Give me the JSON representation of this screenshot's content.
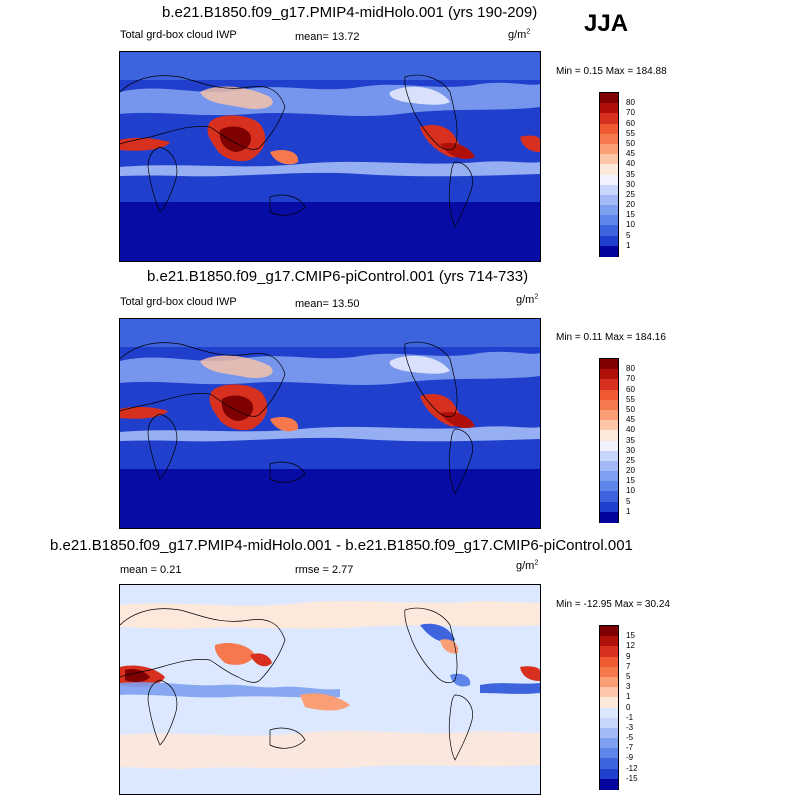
{
  "season": "JJA",
  "panels": [
    {
      "title": "b.e21.B1850.f09_g17.PMIP4-midHolo.001 (yrs 190-209)",
      "variable": "Total grd-box cloud IWP",
      "mean": "mean=  13.72",
      "unit": "g/m",
      "unit_exp": "2",
      "minmax": "Min =  0.15 Max = 184.88"
    },
    {
      "title": "b.e21.B1850.f09_g17.CMIP6-piControl.001 (yrs 714-733)",
      "variable": "Total grd-box cloud IWP",
      "mean": "mean=  13.50",
      "unit": "g/m",
      "unit_exp": "2",
      "minmax": "Min =  0.11 Max = 184.16"
    },
    {
      "title": "b.e21.B1850.f09_g17.PMIP4-midHolo.001 - b.e21.B1850.f09_g17.CMIP6-piControl.001",
      "mean": "mean =   0.21",
      "rmse": "rmse =   2.77",
      "unit": "g/m",
      "unit_exp": "2",
      "minmax": "Min = -12.95 Max =  30.24"
    }
  ],
  "chart_data": [
    {
      "type": "heatmap",
      "title": "b.e21.B1850.f09_g17.PMIP4-midHolo.001 (yrs 190-209)",
      "colorbar": {
        "labels": [
          "80",
          "70",
          "60",
          "55",
          "50",
          "45",
          "40",
          "35",
          "30",
          "25",
          "20",
          "15",
          "10",
          "5",
          "1"
        ],
        "colors": [
          "#7f0000",
          "#b0100a",
          "#d7301f",
          "#ef5a32",
          "#f5794d",
          "#fa9e76",
          "#fdc6a8",
          "#fde8dc",
          "#f2f2ff",
          "#c8d6fc",
          "#a3baf6",
          "#7ea0f0",
          "#5e86ea",
          "#3d64dc",
          "#1f3fcc",
          "#04049c"
        ]
      },
      "stats": {
        "mean": 13.72,
        "min": 0.15,
        "max": 184.88
      }
    },
    {
      "type": "heatmap",
      "title": "b.e21.B1850.f09_g17.CMIP6-piControl.001 (yrs 714-733)",
      "colorbar": {
        "labels": [
          "80",
          "70",
          "60",
          "55",
          "50",
          "45",
          "40",
          "35",
          "30",
          "25",
          "20",
          "15",
          "10",
          "5",
          "1"
        ],
        "colors": [
          "#7f0000",
          "#b0100a",
          "#d7301f",
          "#ef5a32",
          "#f5794d",
          "#fa9e76",
          "#fdc6a8",
          "#fde8dc",
          "#f2f2ff",
          "#c8d6fc",
          "#a3baf6",
          "#7ea0f0",
          "#5e86ea",
          "#3d64dc",
          "#1f3fcc",
          "#04049c"
        ]
      },
      "stats": {
        "mean": 13.5,
        "min": 0.11,
        "max": 184.16
      }
    },
    {
      "type": "heatmap",
      "title": "b.e21.B1850.f09_g17.PMIP4-midHolo.001 - b.e21.B1850.f09_g17.CMIP6-piControl.001",
      "colorbar": {
        "labels": [
          "15",
          "12",
          "9",
          "7",
          "5",
          "3",
          "1",
          "0",
          "-1",
          "-3",
          "-5",
          "-7",
          "-9",
          "-12",
          "-15"
        ],
        "colors": [
          "#7f0000",
          "#b0100a",
          "#d7301f",
          "#ef5a32",
          "#f5794d",
          "#fa9e76",
          "#fdc6a8",
          "#fde8dc",
          "#dce8ff",
          "#c8d6fc",
          "#a3baf6",
          "#7ea0f0",
          "#5e86ea",
          "#3d64dc",
          "#1f3fcc",
          "#04049c"
        ]
      },
      "stats": {
        "mean": 0.21,
        "rmse": 2.77,
        "min": -12.95,
        "max": 30.24
      }
    }
  ]
}
